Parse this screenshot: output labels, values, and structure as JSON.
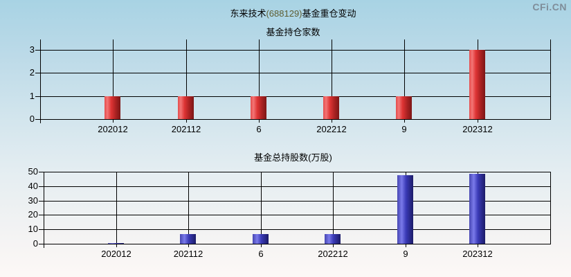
{
  "page": {
    "watermark": "CFi.CN",
    "title": {
      "prefix": "东来技术",
      "code": "(688129)",
      "suffix": "基金重仓变动"
    },
    "colors": {
      "watermark_gray": "#7f8d99",
      "title_code_olive": "#5e5e32",
      "red_bar": "#cc2222",
      "blue_bar": "#3333aa",
      "axis_line": "#000000",
      "background_top": "#a8d3e4",
      "background_bottom": "#fdf8f6"
    }
  },
  "chart_data": [
    {
      "type": "bar",
      "title": "基金持仓家数",
      "categories": [
        "202012",
        "202112",
        "6",
        "202212",
        "9",
        "202312"
      ],
      "values": [
        1,
        1,
        1,
        1,
        1,
        3
      ],
      "yticks": [
        0,
        1,
        2,
        3
      ],
      "ylim": [
        0,
        3.45
      ],
      "xlabel": "",
      "ylabel": "",
      "grid": true,
      "legend": "none",
      "bar_color": "#cc2222"
    },
    {
      "type": "bar",
      "title": "基金总持股数(万股)",
      "categories": [
        "202012",
        "202112",
        "6",
        "202212",
        "9",
        "202312"
      ],
      "values": [
        0.5,
        6.5,
        6.5,
        6.5,
        47.6,
        48.4
      ],
      "yticks": [
        0,
        10,
        20,
        30,
        40,
        50
      ],
      "ylim": [
        0,
        50
      ],
      "xlabel": "",
      "ylabel": "",
      "grid": true,
      "legend": "none",
      "bar_color": "#3333aa"
    }
  ]
}
